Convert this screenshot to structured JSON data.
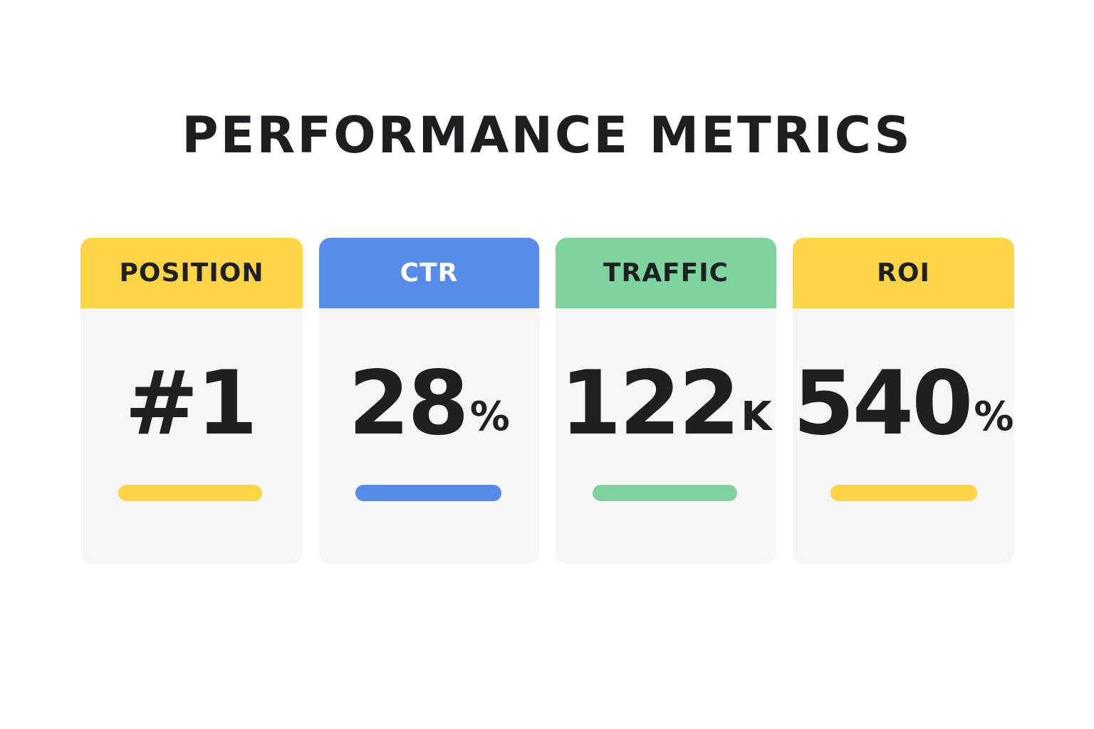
{
  "title": "PERFORMANCE METRICS",
  "colors": {
    "yellow": "#fdd444",
    "blue": "#568aeb",
    "green": "#7fd39d",
    "card_bg": "#f6f6f8",
    "text": "#1f2024"
  },
  "cards": [
    {
      "label": "POSITION",
      "value": "#1",
      "unit": "",
      "accent": "#fdd444",
      "label_color": "#1f2024"
    },
    {
      "label": "CTR",
      "value": "28",
      "unit": "%",
      "accent": "#568aeb",
      "label_color": "#ffffff"
    },
    {
      "label": "TRAFFIC",
      "value": "122",
      "unit": "K",
      "accent": "#7fd39d",
      "label_color": "#1f2024"
    },
    {
      "label": "ROI",
      "value": "540",
      "unit": "%",
      "accent": "#fdd444",
      "label_color": "#1f2024"
    }
  ]
}
